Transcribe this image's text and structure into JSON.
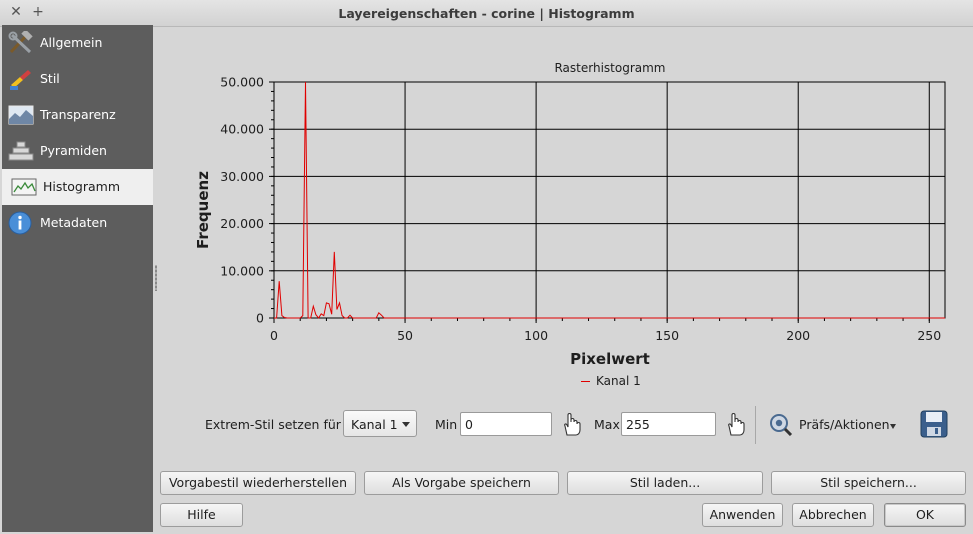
{
  "window": {
    "title": "Layereigenschaften - corine | Histogramm",
    "close_glyph": "✕",
    "add_glyph": "+"
  },
  "sidebar": {
    "items": [
      {
        "label": "Allgemein",
        "icon": "tools-icon"
      },
      {
        "label": "Stil",
        "icon": "paintbrush-icon"
      },
      {
        "label": "Transparenz",
        "icon": "transparency-icon"
      },
      {
        "label": "Pyramiden",
        "icon": "pyramid-icon"
      },
      {
        "label": "Histogramm",
        "icon": "histogram-icon",
        "active": true
      },
      {
        "label": "Metadaten",
        "icon": "info-icon"
      }
    ]
  },
  "chart_data": {
    "type": "line",
    "title": "Rasterhistogramm",
    "xlabel": "Pixelwert",
    "ylabel": "Frequenz",
    "xlim": [
      0,
      256
    ],
    "ylim": [
      0,
      50000
    ],
    "xticks": [
      0,
      50,
      100,
      150,
      200,
      250
    ],
    "xtick_labels": [
      "0",
      "50",
      "100",
      "150",
      "200",
      "250"
    ],
    "yticks": [
      0,
      10000,
      20000,
      30000,
      40000,
      50000
    ],
    "ytick_labels": [
      "0",
      "10.000",
      "20.000",
      "30.000",
      "40.000",
      "50.000"
    ],
    "grid": true,
    "legend": "bottom-center",
    "series": [
      {
        "name": "Kanal 1",
        "color": "#e00000",
        "points": [
          [
            0,
            0
          ],
          [
            1,
            0
          ],
          [
            2,
            7800
          ],
          [
            3,
            500
          ],
          [
            4,
            100
          ],
          [
            5,
            0
          ],
          [
            10,
            0
          ],
          [
            11,
            500
          ],
          [
            12,
            50000
          ],
          [
            13,
            0
          ],
          [
            14,
            0
          ],
          [
            15,
            2500
          ],
          [
            16,
            700
          ],
          [
            17,
            0
          ],
          [
            18,
            900
          ],
          [
            19,
            500
          ],
          [
            20,
            3200
          ],
          [
            21,
            3000
          ],
          [
            22,
            800
          ],
          [
            23,
            14000
          ],
          [
            24,
            1800
          ],
          [
            25,
            3200
          ],
          [
            26,
            500
          ],
          [
            27,
            0
          ],
          [
            28,
            0
          ],
          [
            29,
            600
          ],
          [
            30,
            0
          ],
          [
            39,
            0
          ],
          [
            40,
            1100
          ],
          [
            41,
            600
          ],
          [
            42,
            0
          ],
          [
            256,
            0
          ]
        ]
      }
    ]
  },
  "controls": {
    "extrem_label": "Extrem-Stil setzen für",
    "band_select": "Kanal 1",
    "min_label": "Min",
    "min_value": "0",
    "max_label": "Max",
    "max_value": "255",
    "prefs_label": "Präfs/Aktionen"
  },
  "buttons": {
    "restore_default": "Vorgabestil wiederherstellen",
    "save_default": "Als Vorgabe speichern",
    "load_style": "Stil laden...",
    "save_style": "Stil speichern...",
    "help": "Hilfe",
    "apply": "Anwenden",
    "cancel": "Abbrechen",
    "ok": "OK"
  },
  "colors": {
    "sidebar_bg": "#5d5d5d",
    "active_item": "#efefef",
    "series": "#e00000"
  }
}
